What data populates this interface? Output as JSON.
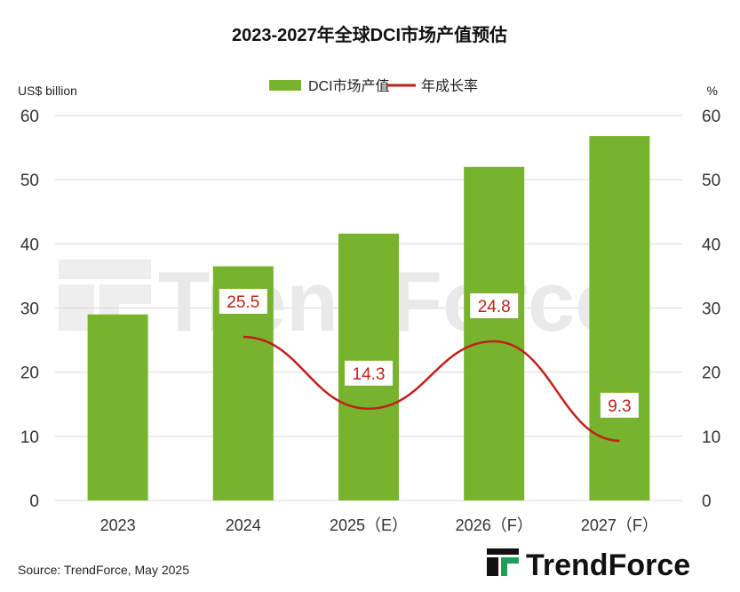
{
  "chart_data": {
    "type": "bar",
    "title": "2023-2027年全球DCI市场产值预估",
    "categories": [
      "2023",
      "2024",
      "2025（E）",
      "2026（F）",
      "2027（F）"
    ],
    "series": [
      {
        "name": "DCI市场产值",
        "type": "bar",
        "axis": "left",
        "values": [
          29.0,
          36.5,
          41.6,
          52.0,
          56.8
        ],
        "color": "#77b32c"
      },
      {
        "name": "年成长率",
        "type": "line",
        "axis": "right",
        "values": [
          null,
          25.5,
          14.3,
          24.8,
          9.3
        ],
        "labels": [
          "",
          "25.5",
          "14.3",
          "24.8",
          "9.3"
        ],
        "color": "#c0201a"
      }
    ],
    "ylabel": "US$ billion",
    "y2label": "%",
    "ylim": [
      0,
      60
    ],
    "y2lim": [
      0,
      60
    ],
    "yticks": [
      "0",
      "10",
      "20",
      "30",
      "40",
      "50",
      "60"
    ],
    "y2ticks": [
      "0",
      "10",
      "20",
      "30",
      "40",
      "50",
      "60"
    ],
    "grid": true,
    "legend_position": "top-center"
  },
  "footer": {
    "source": "Source: TrendForce, May 2025",
    "logo": "TrendForce"
  },
  "watermark": "TrendForce",
  "colors": {
    "bar": "#77b32c",
    "line": "#c0201a",
    "grid": "#d9d9d9"
  }
}
